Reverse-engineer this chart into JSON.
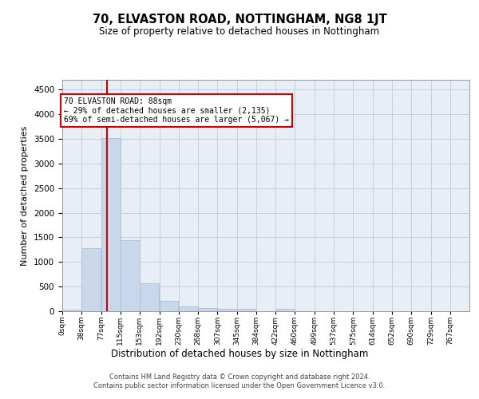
{
  "title": "70, ELVASTON ROAD, NOTTINGHAM, NG8 1JT",
  "subtitle": "Size of property relative to detached houses in Nottingham",
  "xlabel": "Distribution of detached houses by size in Nottingham",
  "ylabel": "Number of detached properties",
  "bar_color": "#c8d8ea",
  "bar_edge_color": "#a8c0d8",
  "grid_color": "#c0ccd8",
  "background_color": "#e8eef6",
  "annotation_box_color": "#cc0000",
  "property_line_color": "#cc0000",
  "property_value": 88,
  "annotation_text": "70 ELVASTON ROAD: 88sqm\n← 29% of detached houses are smaller (2,135)\n69% of semi-detached houses are larger (5,067) →",
  "categories": [
    "0sqm",
    "38sqm",
    "77sqm",
    "115sqm",
    "153sqm",
    "192sqm",
    "230sqm",
    "268sqm",
    "307sqm",
    "345sqm",
    "384sqm",
    "422sqm",
    "460sqm",
    "499sqm",
    "537sqm",
    "575sqm",
    "614sqm",
    "652sqm",
    "690sqm",
    "729sqm",
    "767sqm"
  ],
  "bar_starts": [
    0,
    38,
    77,
    115,
    153,
    192,
    230,
    268,
    307,
    345,
    384,
    422,
    460,
    499,
    537,
    575,
    614,
    652,
    690,
    729
  ],
  "bar_heights": [
    25,
    1280,
    3520,
    1450,
    560,
    215,
    105,
    70,
    50,
    50,
    0,
    50,
    0,
    0,
    0,
    0,
    0,
    0,
    0,
    0
  ],
  "ylim": [
    0,
    4700
  ],
  "yticks": [
    0,
    500,
    1000,
    1500,
    2000,
    2500,
    3000,
    3500,
    4000,
    4500
  ],
  "footer": "Contains HM Land Registry data © Crown copyright and database right 2024.\nContains public sector information licensed under the Open Government Licence v3.0.",
  "bin_width": 38,
  "figwidth": 6.0,
  "figheight": 5.0,
  "dpi": 100
}
